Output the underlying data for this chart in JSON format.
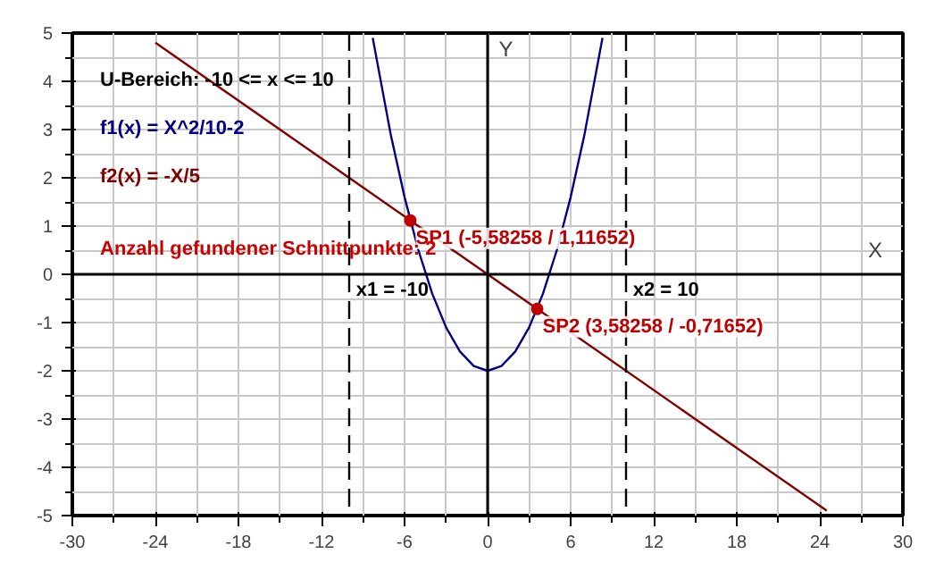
{
  "chart_data": {
    "type": "line",
    "xlabel": "X",
    "ylabel": "Y",
    "xlim": [
      -30,
      30
    ],
    "ylim": [
      -5,
      5
    ],
    "xticks": [
      -30,
      -24,
      -18,
      -12,
      -6,
      0,
      6,
      12,
      18,
      24,
      30
    ],
    "yticks": [
      -5,
      -4,
      -3,
      -2,
      -1,
      0,
      1,
      2,
      3,
      4,
      5
    ],
    "grid": true,
    "legend": "top left",
    "marker": "none",
    "line_style": "solid",
    "series": [
      {
        "name": "f1(x) = X^2/10-2",
        "color": "#000080",
        "x": [
          -8.3,
          -7,
          -6,
          -5,
          -4,
          -3,
          -2,
          -1,
          0,
          1,
          2,
          3,
          4,
          5,
          6,
          7,
          8.3
        ],
        "values": [
          4.9,
          2.9,
          1.6,
          0.5,
          -0.4,
          -1.1,
          -1.6,
          -1.9,
          -2,
          -1.9,
          -1.6,
          -1.1,
          -0.4,
          0.5,
          1.6,
          2.9,
          4.9
        ]
      },
      {
        "name": "f2(x) = -X/5",
        "color": "#800000",
        "x": [
          -24,
          24.5
        ],
        "values": [
          4.8,
          -4.9
        ]
      },
      {
        "type": "scatter",
        "marker": "circle",
        "color": "#c00000",
        "x": [
          -5.58258,
          3.58258
        ],
        "values": [
          1.11652,
          -0.71652
        ],
        "value_labels": [
          "SP1 (-5,58258 / 1,11652)",
          "SP2 (3,58258 / -0,71652)"
        ]
      }
    ],
    "ref_lines": [
      {
        "axis": "x",
        "value": -10,
        "label": "x1 = -10",
        "color": "#000000",
        "line_style": "dashed"
      },
      {
        "axis": "x",
        "value": 10,
        "label": "x2 = 10",
        "color": "#000000",
        "line_style": "dashed"
      }
    ],
    "annotations": [
      "U-Bereich: -10 <= x <= 10",
      "Anzahl gefundener Schnittpunkte: 2"
    ]
  }
}
